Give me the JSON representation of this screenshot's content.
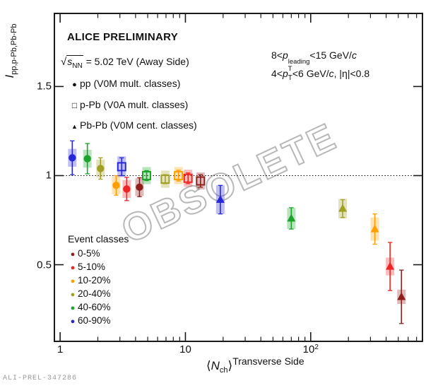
{
  "watermark": "OBSOLETE",
  "footer": {
    "id_label": "ALI-PREL-347286"
  },
  "annotations": {
    "title": "ALICE PRELIMINARY",
    "energy": {
      "sqrt": "√",
      "s": "s",
      "sub": "NN",
      "rest": " = 5.02 TeV (Away Side)"
    },
    "detector_legend": [
      {
        "marker": "●",
        "label": "pp (V0M mult. classes)"
      },
      {
        "marker": "□",
        "label": "p-Pb (V0A mult. classes)"
      },
      {
        "marker": "▲",
        "label": "Pb-Pb (V0M cent. classes)"
      }
    ],
    "cuts": {
      "line1": {
        "a": "8<",
        "p": "p",
        "sup": "leading",
        "sub": "T",
        "b": "<15 GeV/",
        "c": "c"
      },
      "line2": {
        "a": "4<",
        "p": "p",
        "sub": "T",
        "b": "<6 GeV/",
        "c": "c",
        "d": ", |η|<0.8"
      }
    }
  },
  "yaxis": {
    "title_main": "I",
    "title_sub": "pp,p-Pb,Pb-Pb",
    "ticks": [
      "1.5",
      "1",
      "0.5"
    ]
  },
  "xaxis": {
    "tick1": "1",
    "tick2": "10",
    "tick3_base": "10",
    "tick3_exp": "2",
    "label_open": "⟨",
    "label_N": "N",
    "label_sub": "ch",
    "label_close": "⟩",
    "label_sup": "Transverse Side"
  },
  "chart_data": {
    "type": "scatter",
    "title": "ALICE PRELIMINARY",
    "xlabel": "⟨N_ch⟩^Transverse Side",
    "ylabel": "I_pp,p-Pb,Pb-Pb",
    "x_log": true,
    "xlim": [
      0.9,
      780
    ],
    "ylim": [
      0.07,
      1.91
    ],
    "reference_line_y": 1.0,
    "x_major_ticks": [
      1,
      10,
      100
    ],
    "y_major_ticks": [
      0.5,
      1.0,
      1.5
    ],
    "grid": false,
    "event_classes_title": "Event classes",
    "classes": [
      {
        "label": "0-5%",
        "color": "#8f1f1e"
      },
      {
        "label": "5-10%",
        "color": "#ee2524"
      },
      {
        "label": "10-20%",
        "color": "#ff9e00"
      },
      {
        "label": "20-40%",
        "color": "#a0a024"
      },
      {
        "label": "40-60%",
        "color": "#1ca32b"
      },
      {
        "label": "60-90%",
        "color": "#2727d8"
      }
    ],
    "series": [
      {
        "name": "pp (V0M mult. classes)",
        "marker": "circle",
        "points": [
          {
            "class": "60-90%",
            "x": 1.25,
            "y": 1.1,
            "stat": 0.095,
            "sys": 0.05
          },
          {
            "class": "40-60%",
            "x": 1.65,
            "y": 1.095,
            "stat": 0.085,
            "sys": 0.05
          },
          {
            "class": "20-40%",
            "x": 2.1,
            "y": 1.04,
            "stat": 0.06,
            "sys": 0.05
          },
          {
            "class": "10-20%",
            "x": 2.8,
            "y": 0.945,
            "stat": 0.055,
            "sys": 0.05
          },
          {
            "class": "5-10%",
            "x": 3.4,
            "y": 0.925,
            "stat": 0.065,
            "sys": 0.05
          },
          {
            "class": "0-5%",
            "x": 4.3,
            "y": 0.935,
            "stat": 0.053,
            "sys": 0.05
          }
        ]
      },
      {
        "name": "p-Pb (V0A mult. classes)",
        "marker": "square-open",
        "points": [
          {
            "class": "60-90%",
            "x": 3.1,
            "y": 1.05,
            "stat": 0.05,
            "sys": 0.058
          },
          {
            "class": "40-60%",
            "x": 4.9,
            "y": 1.0,
            "stat": 0.028,
            "sys": 0.048
          },
          {
            "class": "20-40%",
            "x": 6.9,
            "y": 0.98,
            "stat": 0.025,
            "sys": 0.048
          },
          {
            "class": "10-20%",
            "x": 8.8,
            "y": 1.0,
            "stat": 0.03,
            "sys": 0.048
          },
          {
            "class": "5-10%",
            "x": 10.5,
            "y": 0.985,
            "stat": 0.03,
            "sys": 0.048
          },
          {
            "class": "0-5%",
            "x": 13.2,
            "y": 0.97,
            "stat": 0.035,
            "sys": 0.048
          }
        ]
      },
      {
        "name": "Pb-Pb (V0M cent. classes)",
        "marker": "triangle",
        "points": [
          {
            "class": "60-90%",
            "x": 19,
            "y": 0.865,
            "stat": 0.08,
            "sys": 0.08
          },
          {
            "class": "40-60%",
            "x": 70,
            "y": 0.76,
            "stat": 0.06,
            "sys": 0.06
          },
          {
            "class": "20-40%",
            "x": 180,
            "y": 0.815,
            "stat": 0.05,
            "sys": 0.055
          },
          {
            "class": "10-20%",
            "x": 325,
            "y": 0.7,
            "stat": 0.085,
            "sys": 0.065
          },
          {
            "class": "5-10%",
            "x": 430,
            "y": 0.49,
            "stat": 0.135,
            "sys": 0.05
          },
          {
            "class": "0-5%",
            "x": 530,
            "y": 0.32,
            "stat": 0.15,
            "sys": 0.04
          }
        ]
      }
    ]
  }
}
